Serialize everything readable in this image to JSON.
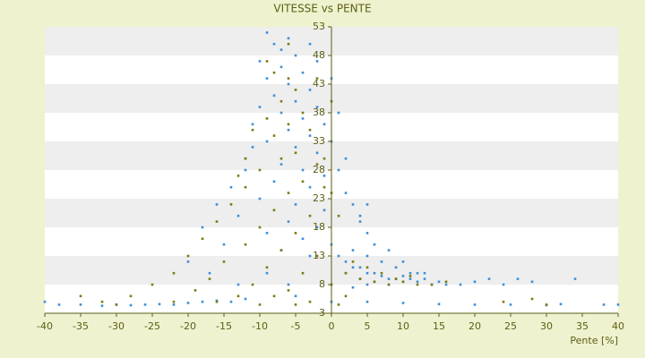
{
  "chart_data": {
    "type": "scatter",
    "title": "VITESSE vs PENTE",
    "x_label": "Pente [%]",
    "xlim": [
      -40,
      40
    ],
    "xticks": [
      -40,
      -35,
      -30,
      -25,
      -20,
      -15,
      -10,
      -5,
      0,
      5,
      10,
      15,
      20,
      25,
      30,
      35,
      40
    ],
    "ylim": [
      3,
      53
    ],
    "yticks": [
      3,
      8,
      13,
      18,
      23,
      28,
      33,
      38,
      43,
      48,
      53
    ],
    "banded_grid": true,
    "series": [
      {
        "color": "#3d8fd6",
        "x": [
          -9,
          -8,
          -7,
          -6,
          -5,
          -7,
          -9,
          -4,
          -6,
          -8,
          -5,
          -3,
          -10,
          -7,
          -4,
          -2,
          -11,
          -6,
          -3,
          -1,
          -9,
          -5,
          -2,
          0,
          -12,
          -7,
          -4,
          -1,
          -8,
          -3,
          1,
          2,
          -10,
          -5,
          -1,
          3,
          -13,
          -6,
          -2,
          4,
          -9,
          -4,
          0,
          5,
          -15,
          -7,
          -3,
          1,
          2,
          3,
          4,
          5,
          6,
          7,
          8,
          9,
          10,
          11,
          12,
          13,
          14,
          15,
          16,
          18,
          20,
          3,
          5,
          7,
          9,
          11,
          13,
          2,
          4,
          6,
          8,
          10,
          12,
          6,
          8,
          10,
          22,
          24,
          26,
          28,
          34,
          3,
          5,
          -40,
          -38,
          -35,
          -32,
          -30,
          -28,
          -26,
          -24,
          -22,
          -20,
          -18,
          -16,
          -14,
          -12,
          -5,
          0,
          5,
          10,
          15,
          20,
          25,
          30,
          32,
          38,
          40,
          -14,
          -12,
          -11,
          -16,
          -18,
          -20,
          -17,
          -13,
          -9,
          -6,
          2,
          1,
          0,
          4,
          5,
          -2,
          -3,
          -10
        ],
        "values": [
          52,
          50,
          49,
          51,
          48,
          46,
          44,
          45,
          43,
          41,
          40,
          42,
          39,
          38,
          37,
          39,
          36,
          35,
          34,
          36,
          33,
          32,
          31,
          33,
          30,
          29,
          28,
          27,
          26,
          25,
          28,
          24,
          23,
          22,
          21,
          22,
          20,
          19,
          18,
          19,
          17,
          16,
          15,
          17,
          15,
          14,
          13,
          13,
          12,
          11,
          11,
          10,
          10,
          9.5,
          9,
          9,
          8.5,
          9,
          8.5,
          9,
          8,
          8.5,
          8,
          8,
          8.5,
          14,
          13,
          12,
          11,
          10,
          10,
          10,
          9,
          8.5,
          8,
          9.5,
          10,
          15,
          14,
          12,
          9,
          8,
          9,
          8.5,
          9,
          7.5,
          8,
          5,
          4.5,
          4.5,
          4.3,
          4.5,
          4.4,
          4.5,
          4.6,
          4.5,
          4.8,
          5,
          5.2,
          5,
          5.5,
          6,
          5,
          5,
          4.8,
          4.6,
          4.5,
          4.5,
          4.4,
          4.6,
          4.5,
          4.5,
          25,
          28,
          32,
          22,
          18,
          12,
          10,
          8,
          10,
          8,
          30,
          38,
          44,
          20,
          22,
          47,
          50,
          47
        ]
      },
      {
        "color": "#7b7b12",
        "x": [
          -8,
          -6,
          -5,
          -7,
          -9,
          -4,
          -6,
          -8,
          -3,
          -5,
          -7,
          -10,
          -2,
          -4,
          -12,
          -6,
          -1,
          -14,
          -8,
          -3,
          -16,
          -10,
          -5,
          -18,
          -12,
          -7,
          -2,
          -20,
          -15,
          -9,
          -4,
          -22,
          -17,
          -11,
          -6,
          -25,
          -19,
          -13,
          -8,
          -28,
          -22,
          -16,
          -10,
          -5,
          0,
          2,
          4,
          6,
          8,
          10,
          12,
          14,
          16,
          3,
          5,
          7,
          9,
          11,
          1,
          0,
          -1,
          0,
          -2,
          -9,
          -6,
          -32,
          -35,
          -30,
          24,
          28,
          30,
          -12,
          -11,
          -13,
          1,
          2,
          -3
        ],
        "values": [
          45,
          44,
          42,
          40,
          37,
          38,
          36,
          34,
          35,
          31,
          30,
          28,
          29,
          26,
          25,
          24,
          25,
          22,
          21,
          20,
          19,
          18,
          17,
          16,
          15,
          14,
          13,
          13,
          12,
          11,
          10,
          10,
          9,
          8,
          7,
          8,
          7,
          6,
          6,
          6,
          5,
          5,
          4.5,
          4.5,
          8,
          10,
          9,
          8.5,
          8,
          8.5,
          8,
          8,
          8.5,
          12,
          11,
          10,
          9,
          9.5,
          20,
          24,
          30,
          40,
          44,
          47,
          50,
          5,
          6,
          4.5,
          5,
          5.5,
          4.5,
          30,
          35,
          27,
          4.5,
          6,
          5
        ]
      }
    ]
  }
}
